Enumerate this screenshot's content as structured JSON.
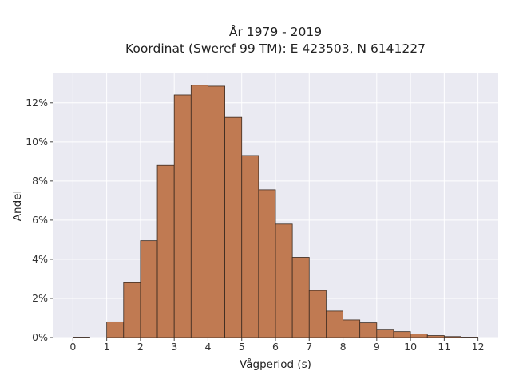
{
  "chart_data": {
    "type": "bar",
    "title": "År 1979 - 2019",
    "subtitle": "Koordinat (Sweref 99 TM): E 423503, N 6141227",
    "xlabel": "Vågperiod (s)",
    "ylabel": "Andel",
    "bin_width": 0.5,
    "bin_starts": [
      0,
      0.5,
      1,
      1.5,
      2,
      2.5,
      3,
      3.5,
      4,
      4.5,
      5,
      5.5,
      6,
      6.5,
      7,
      7.5,
      8,
      8.5,
      9,
      9.5,
      10,
      10.5,
      11,
      11.5
    ],
    "values": [
      0.02,
      0,
      0.8,
      2.8,
      4.95,
      8.8,
      12.4,
      12.9,
      12.85,
      11.25,
      9.3,
      7.55,
      5.8,
      4.1,
      2.4,
      1.35,
      0.9,
      0.75,
      0.42,
      0.3,
      0.18,
      0.1,
      0.05,
      0.02
    ],
    "xticks": [
      "0",
      "1",
      "2",
      "3",
      "4",
      "5",
      "6",
      "7",
      "8",
      "9",
      "10",
      "11",
      "12"
    ],
    "yticks": [
      "0%",
      "2%",
      "4%",
      "6%",
      "8%",
      "10%",
      "12%"
    ],
    "xlim": [
      -0.6,
      12.6
    ],
    "ylim": [
      0,
      13.5
    ],
    "grid": true,
    "colors": {
      "bar": "#c07a52",
      "bar_edge": "#3a2a20",
      "plot_bg": "#eaeaf2",
      "grid": "#ffffff"
    }
  }
}
